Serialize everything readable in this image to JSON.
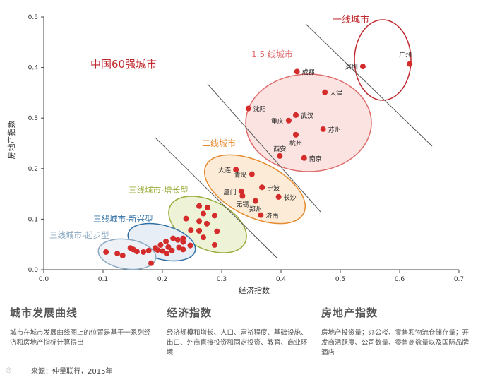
{
  "chart_data": {
    "type": "scatter",
    "title": "中国60强城市",
    "xlabel": "经济指数",
    "ylabel": "房地产指数",
    "xlim": [
      0,
      0.7
    ],
    "ylim": [
      0,
      0.5
    ],
    "xticks": [
      "0.0",
      "0.1",
      "0.2",
      "0.3",
      "0.4",
      "0.5",
      "0.6",
      "0.7"
    ],
    "yticks": [
      "0.0",
      "0.1",
      "0.2",
      "0.3",
      "0.4",
      "0.5"
    ],
    "grid": false,
    "point_color": "#d42b2b",
    "tiers": [
      {
        "name": "一线城市",
        "color": "#c0282d"
      },
      {
        "name": "1.5 线城市",
        "color": "#e06b6b"
      },
      {
        "name": "二线城市",
        "color": "#e68a2e"
      },
      {
        "name": "三线城市-增长型",
        "color": "#9aae3c"
      },
      {
        "name": "三线城市-新兴型",
        "color": "#2f6fa5"
      },
      {
        "name": "三线城市-起步型",
        "color": "#8aa9c2"
      }
    ],
    "labeled_points": [
      {
        "label": "广州",
        "x": 0.617,
        "y": 0.407
      },
      {
        "label": "深圳",
        "x": 0.538,
        "y": 0.402
      },
      {
        "label": "成都",
        "x": 0.427,
        "y": 0.392
      },
      {
        "label": "天津",
        "x": 0.474,
        "y": 0.351
      },
      {
        "label": "沈阳",
        "x": 0.345,
        "y": 0.319
      },
      {
        "label": "武汉",
        "x": 0.425,
        "y": 0.306
      },
      {
        "label": "重庆",
        "x": 0.413,
        "y": 0.295
      },
      {
        "label": "苏州",
        "x": 0.471,
        "y": 0.278
      },
      {
        "label": "杭州",
        "x": 0.425,
        "y": 0.267
      },
      {
        "label": "西安",
        "x": 0.398,
        "y": 0.225
      },
      {
        "label": "南京",
        "x": 0.439,
        "y": 0.221
      },
      {
        "label": "大连",
        "x": 0.324,
        "y": 0.198
      },
      {
        "label": "青岛",
        "x": 0.351,
        "y": 0.189
      },
      {
        "label": "宁波",
        "x": 0.368,
        "y": 0.163
      },
      {
        "label": "厦门",
        "x": 0.333,
        "y": 0.155
      },
      {
        "label": "长沙",
        "x": 0.396,
        "y": 0.144
      },
      {
        "label": "无锡",
        "x": 0.335,
        "y": 0.146
      },
      {
        "label": "郑州",
        "x": 0.357,
        "y": 0.136
      },
      {
        "label": "济南",
        "x": 0.366,
        "y": 0.108
      }
    ],
    "unlabeled_points": [
      {
        "x": 0.262,
        "y": 0.126
      },
      {
        "x": 0.276,
        "y": 0.123
      },
      {
        "x": 0.24,
        "y": 0.101
      },
      {
        "x": 0.269,
        "y": 0.111
      },
      {
        "x": 0.288,
        "y": 0.107
      },
      {
        "x": 0.262,
        "y": 0.096
      },
      {
        "x": 0.275,
        "y": 0.091
      },
      {
        "x": 0.248,
        "y": 0.078
      },
      {
        "x": 0.262,
        "y": 0.077
      },
      {
        "x": 0.292,
        "y": 0.076
      },
      {
        "x": 0.269,
        "y": 0.064
      },
      {
        "x": 0.288,
        "y": 0.049
      },
      {
        "x": 0.235,
        "y": 0.062
      },
      {
        "x": 0.247,
        "y": 0.048
      },
      {
        "x": 0.218,
        "y": 0.062
      },
      {
        "x": 0.226,
        "y": 0.059
      },
      {
        "x": 0.235,
        "y": 0.055
      },
      {
        "x": 0.206,
        "y": 0.056
      },
      {
        "x": 0.197,
        "y": 0.049
      },
      {
        "x": 0.21,
        "y": 0.045
      },
      {
        "x": 0.228,
        "y": 0.044
      },
      {
        "x": 0.188,
        "y": 0.043
      },
      {
        "x": 0.216,
        "y": 0.038
      },
      {
        "x": 0.235,
        "y": 0.04
      },
      {
        "x": 0.2,
        "y": 0.037
      },
      {
        "x": 0.192,
        "y": 0.039
      },
      {
        "x": 0.207,
        "y": 0.032
      },
      {
        "x": 0.105,
        "y": 0.035
      },
      {
        "x": 0.124,
        "y": 0.032
      },
      {
        "x": 0.133,
        "y": 0.028
      },
      {
        "x": 0.146,
        "y": 0.043
      },
      {
        "x": 0.151,
        "y": 0.04
      },
      {
        "x": 0.157,
        "y": 0.036
      },
      {
        "x": 0.168,
        "y": 0.035
      },
      {
        "x": 0.177,
        "y": 0.038
      },
      {
        "x": 0.181,
        "y": 0.013
      }
    ]
  },
  "sections": {
    "curve": {
      "title": "城市发展曲线",
      "body": "城市在城市发展曲线图上的位置是基于一系列经济和房地产指标计算得出"
    },
    "economic": {
      "title": "经济指数",
      "body": "经济规模和增长、人口、富裕程度、基础设施、出口、外商直接投资和固定投资、教育、商业环境"
    },
    "realestate": {
      "title": "房地产指数",
      "body": "房地产投资量；办公楼、零售和物流仓储存量；开发商活跃度、公司数量、零售商数量以及国际品牌酒店"
    }
  },
  "source": "来源：仲量联行，2015年"
}
